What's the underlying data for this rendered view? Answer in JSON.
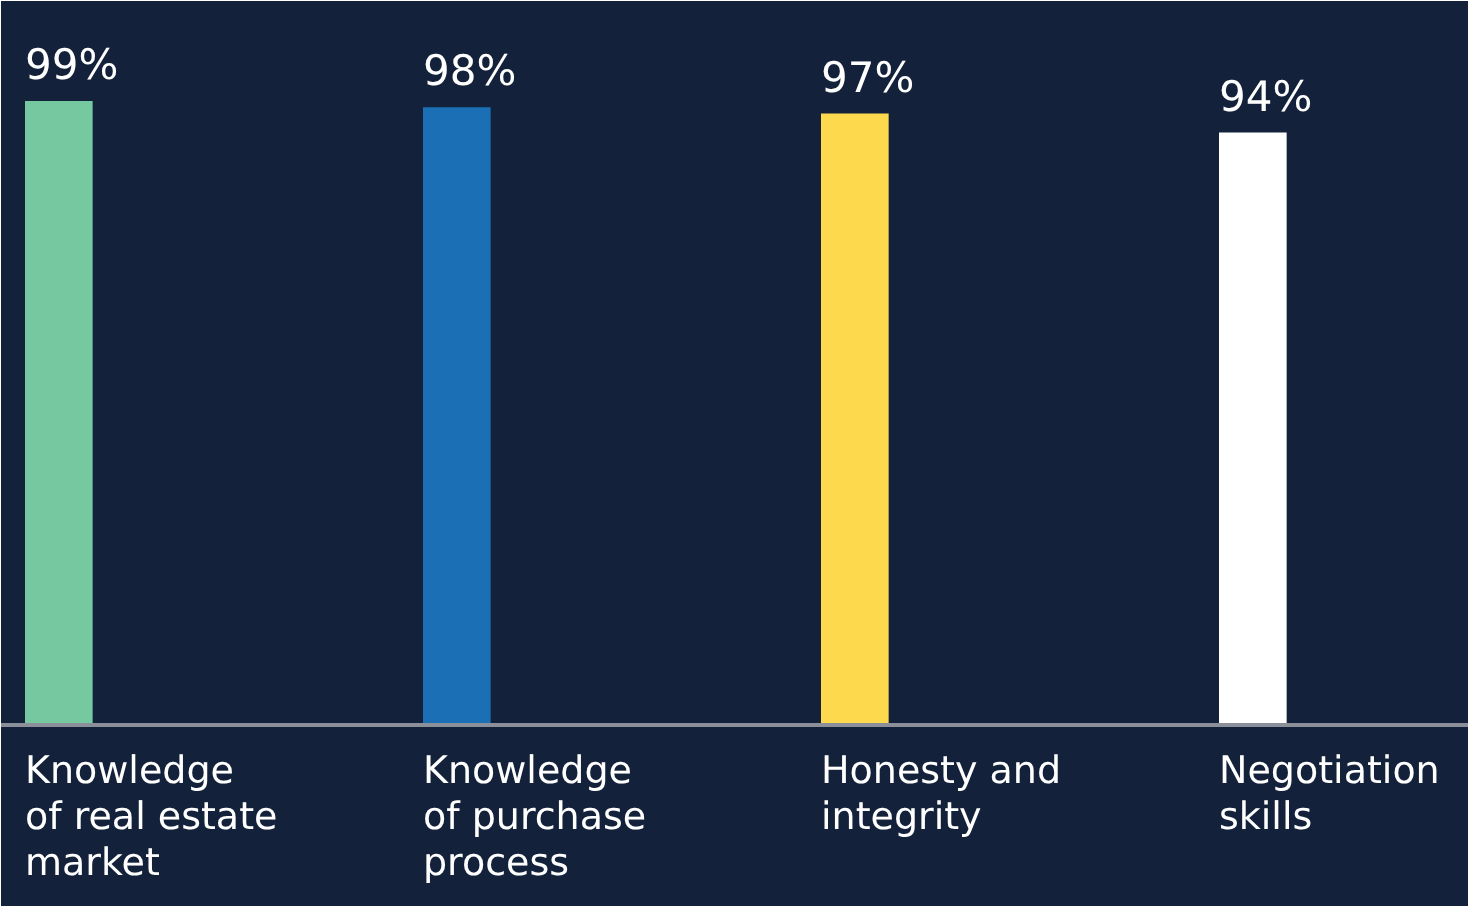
{
  "chart_data": {
    "type": "bar",
    "categories": [
      "Knowledge\nof real estate\nmarket",
      "Knowledge\nof purchase\nprocess",
      "Honesty and\nintegrity",
      "Negotiation\nskills"
    ],
    "values": [
      99,
      98,
      97,
      94
    ],
    "value_labels": [
      "99%",
      "98%",
      "97%",
      "94%"
    ],
    "colors": [
      "#76c8a0",
      "#1a6fb5",
      "#fdd94e",
      "#ffffff"
    ],
    "grid": false,
    "tick_labels": "x"
  }
}
